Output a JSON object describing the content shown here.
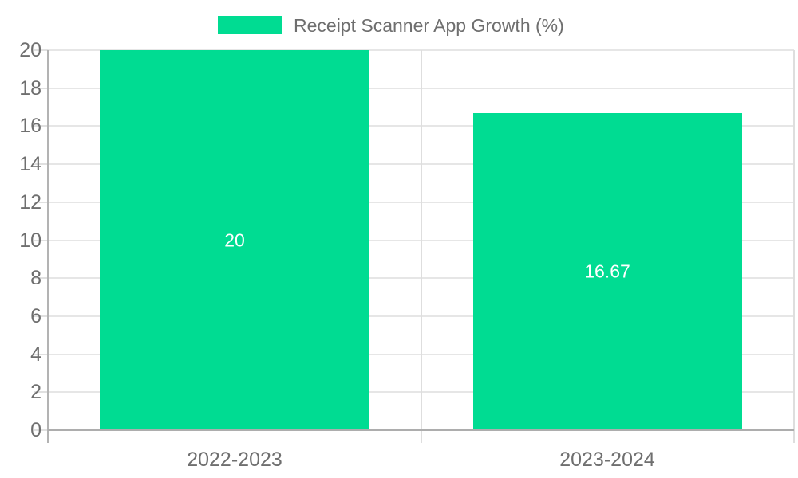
{
  "chart_data": {
    "type": "bar",
    "title": "Receipt Scanner App Growth (%)",
    "legend": {
      "label": "Receipt Scanner App Growth (%)",
      "position": "top-center"
    },
    "categories": [
      "2022-2023",
      "2023-2024"
    ],
    "values": [
      20,
      16.67
    ],
    "value_labels": [
      "20",
      "16.67"
    ],
    "xlabel": "",
    "ylabel": "",
    "ylim": [
      0,
      20
    ],
    "yticks": [
      0,
      2,
      4,
      6,
      8,
      10,
      12,
      14,
      16,
      18,
      20
    ],
    "grid": true,
    "colors": {
      "bar": "#00dc92",
      "value_label": "#ffffff",
      "axis_text": "#6f6f6f",
      "title_text": "#6e6e6e",
      "gridline": "#e6e6e6"
    }
  }
}
